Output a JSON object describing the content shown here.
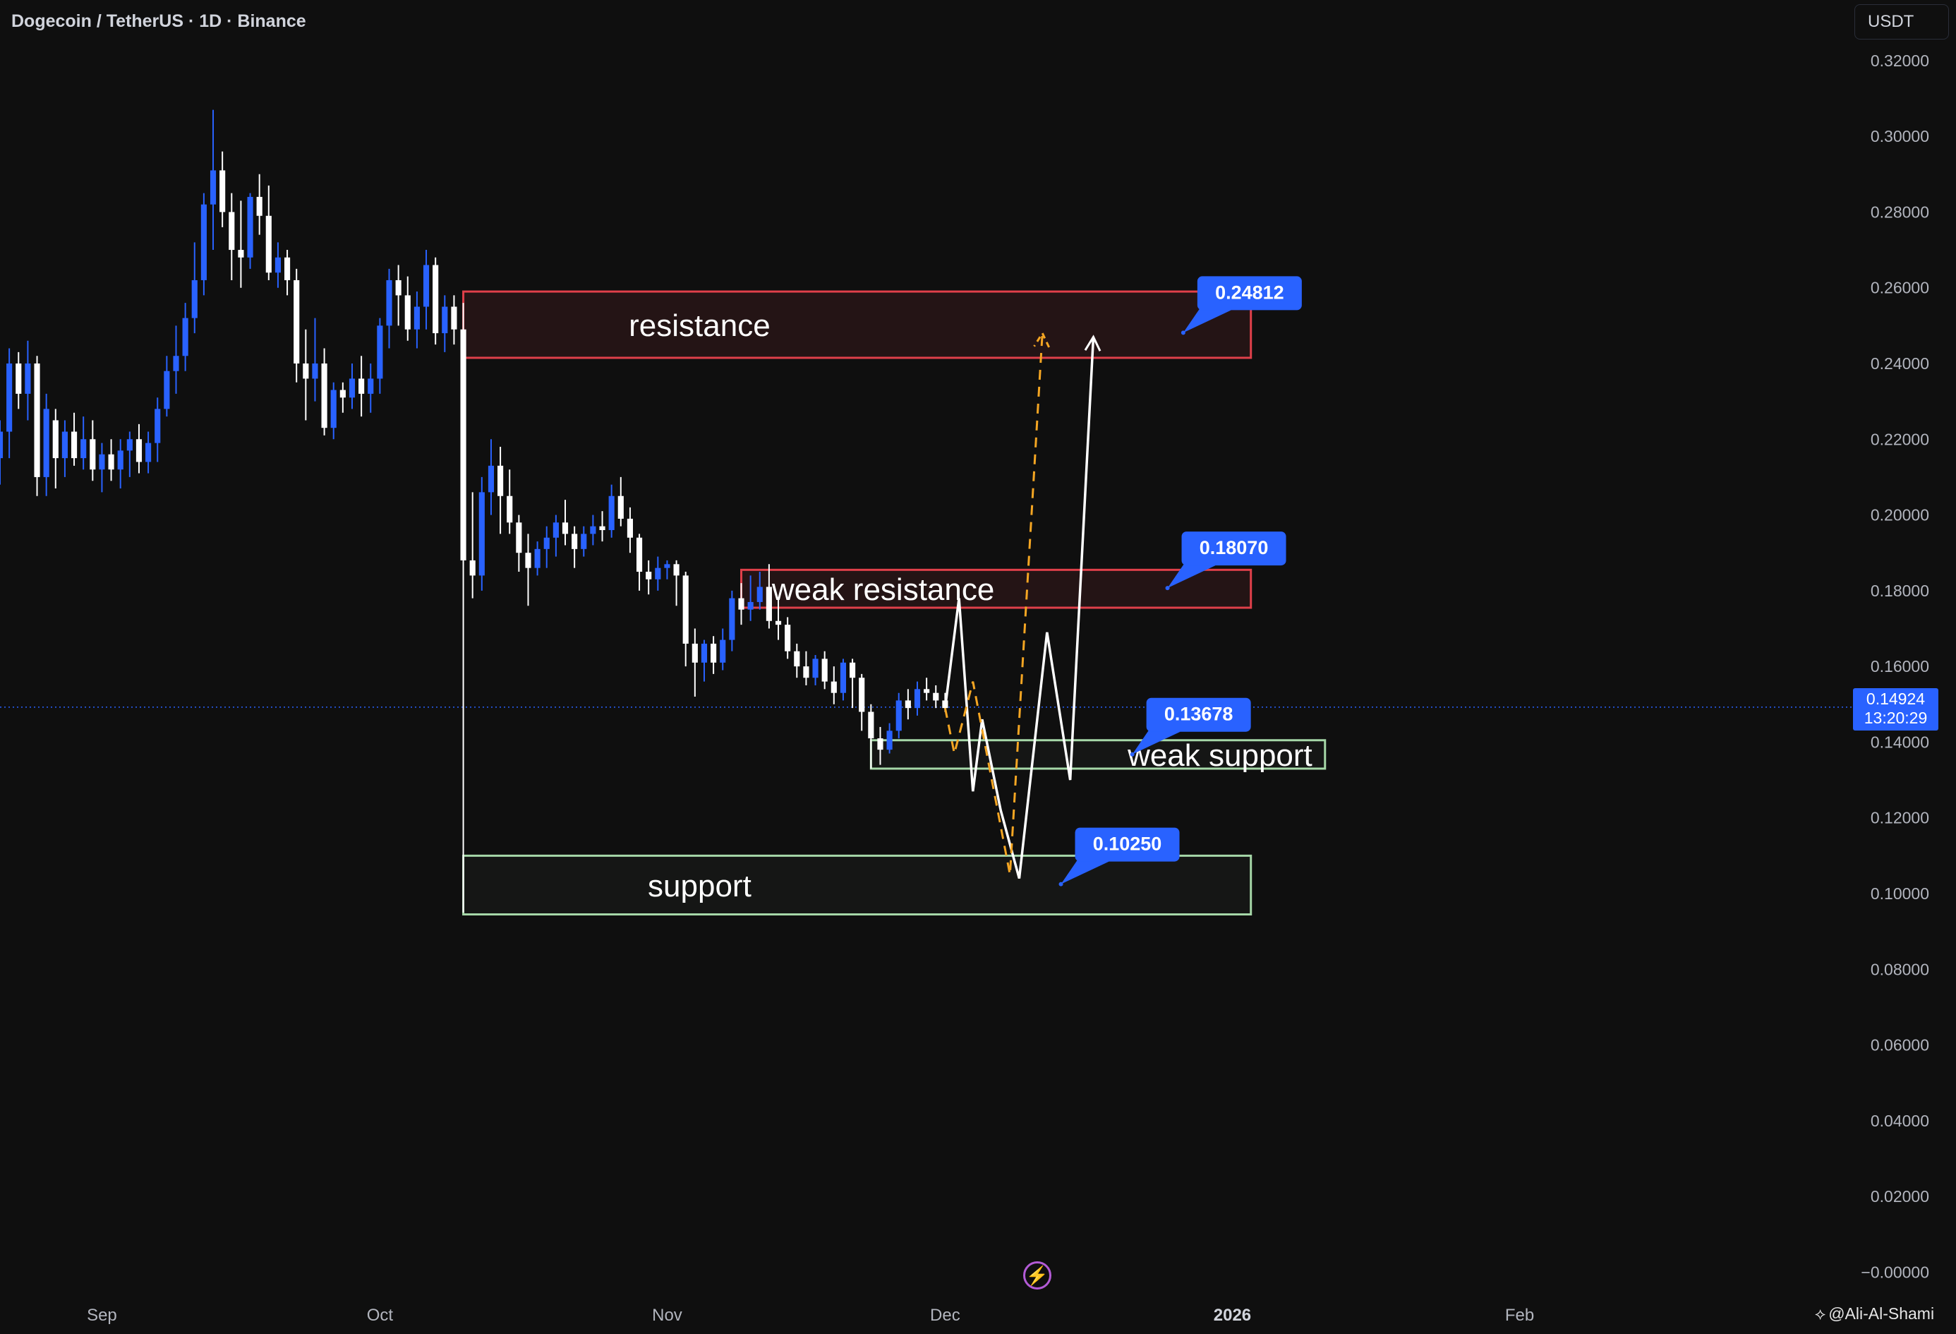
{
  "header": {
    "symbol_title": "Dogecoin / TetherUS · 1D · Binance",
    "currency": "USDT"
  },
  "current_price": {
    "value": "0.14924",
    "countdown": "13:20:29"
  },
  "author": "@Ali-Al-Shami",
  "icons": {
    "flash": "lightning-icon",
    "author": "diamond-logo-icon"
  },
  "colors": {
    "background": "#0f0f0f",
    "up_candle": "#2962ff",
    "down_candle": "#ffffff",
    "resistance": "#e0404a",
    "support": "#a6d8a8",
    "label_bg": "#2962ff",
    "projection_main": "#ffffff",
    "projection_alt": "#f5a623"
  },
  "chart_data": {
    "type": "candlestick",
    "y_axis": {
      "ticks": [
        "0.32000",
        "0.30000",
        "0.28000",
        "0.26000",
        "0.24000",
        "0.22000",
        "0.20000",
        "0.18000",
        "0.16000",
        "0.14000",
        "0.12000",
        "0.10000",
        "0.08000",
        "0.06000",
        "0.04000",
        "0.02000",
        "−0.00000"
      ],
      "tick_values": [
        0.32,
        0.3,
        0.28,
        0.26,
        0.24,
        0.22,
        0.2,
        0.18,
        0.16,
        0.14,
        0.12,
        0.1,
        0.08,
        0.06,
        0.04,
        0.02,
        0.0
      ],
      "range": [
        -0.007,
        0.336
      ]
    },
    "x_axis": {
      "labels": [
        {
          "label": "Sep",
          "day": 0
        },
        {
          "label": "Oct",
          "day": 30
        },
        {
          "label": "Nov",
          "day": 61
        },
        {
          "label": "Dec",
          "day": 91
        },
        {
          "label": "2026",
          "day": 122
        },
        {
          "label": "Feb",
          "day": 153
        }
      ],
      "range_days": [
        -11,
        187
      ]
    },
    "candles": [
      {
        "d": -11,
        "o": 0.215,
        "h": 0.225,
        "l": 0.208,
        "c": 0.222
      },
      {
        "d": -10,
        "o": 0.222,
        "h": 0.244,
        "l": 0.215,
        "c": 0.24
      },
      {
        "d": -9,
        "o": 0.24,
        "h": 0.243,
        "l": 0.228,
        "c": 0.232
      },
      {
        "d": -8,
        "o": 0.232,
        "h": 0.246,
        "l": 0.225,
        "c": 0.24
      },
      {
        "d": -7,
        "o": 0.24,
        "h": 0.242,
        "l": 0.205,
        "c": 0.21
      },
      {
        "d": -6,
        "o": 0.21,
        "h": 0.232,
        "l": 0.205,
        "c": 0.228
      },
      {
        "d": -5,
        "o": 0.225,
        "h": 0.228,
        "l": 0.207,
        "c": 0.215
      },
      {
        "d": -4,
        "o": 0.215,
        "h": 0.225,
        "l": 0.21,
        "c": 0.222
      },
      {
        "d": -3,
        "o": 0.222,
        "h": 0.227,
        "l": 0.213,
        "c": 0.215
      },
      {
        "d": -2,
        "o": 0.215,
        "h": 0.226,
        "l": 0.212,
        "c": 0.22
      },
      {
        "d": -1,
        "o": 0.22,
        "h": 0.225,
        "l": 0.209,
        "c": 0.212
      },
      {
        "d": 0,
        "o": 0.212,
        "h": 0.219,
        "l": 0.206,
        "c": 0.216
      },
      {
        "d": 1,
        "o": 0.216,
        "h": 0.22,
        "l": 0.209,
        "c": 0.212
      },
      {
        "d": 2,
        "o": 0.212,
        "h": 0.22,
        "l": 0.207,
        "c": 0.217
      },
      {
        "d": 3,
        "o": 0.217,
        "h": 0.222,
        "l": 0.21,
        "c": 0.22
      },
      {
        "d": 4,
        "o": 0.22,
        "h": 0.224,
        "l": 0.211,
        "c": 0.214
      },
      {
        "d": 5,
        "o": 0.214,
        "h": 0.222,
        "l": 0.211,
        "c": 0.219
      },
      {
        "d": 6,
        "o": 0.219,
        "h": 0.231,
        "l": 0.214,
        "c": 0.228
      },
      {
        "d": 7,
        "o": 0.228,
        "h": 0.242,
        "l": 0.226,
        "c": 0.238
      },
      {
        "d": 8,
        "o": 0.238,
        "h": 0.25,
        "l": 0.232,
        "c": 0.242
      },
      {
        "d": 9,
        "o": 0.242,
        "h": 0.256,
        "l": 0.238,
        "c": 0.252
      },
      {
        "d": 10,
        "o": 0.252,
        "h": 0.272,
        "l": 0.248,
        "c": 0.262
      },
      {
        "d": 11,
        "o": 0.262,
        "h": 0.285,
        "l": 0.258,
        "c": 0.282
      },
      {
        "d": 12,
        "o": 0.282,
        "h": 0.307,
        "l": 0.27,
        "c": 0.291
      },
      {
        "d": 13,
        "o": 0.291,
        "h": 0.296,
        "l": 0.276,
        "c": 0.28
      },
      {
        "d": 14,
        "o": 0.28,
        "h": 0.285,
        "l": 0.262,
        "c": 0.27
      },
      {
        "d": 15,
        "o": 0.27,
        "h": 0.283,
        "l": 0.26,
        "c": 0.268
      },
      {
        "d": 16,
        "o": 0.268,
        "h": 0.285,
        "l": 0.265,
        "c": 0.284
      },
      {
        "d": 17,
        "o": 0.284,
        "h": 0.29,
        "l": 0.274,
        "c": 0.279
      },
      {
        "d": 18,
        "o": 0.279,
        "h": 0.287,
        "l": 0.262,
        "c": 0.264
      },
      {
        "d": 19,
        "o": 0.264,
        "h": 0.272,
        "l": 0.26,
        "c": 0.268
      },
      {
        "d": 20,
        "o": 0.268,
        "h": 0.27,
        "l": 0.258,
        "c": 0.262
      },
      {
        "d": 21,
        "o": 0.262,
        "h": 0.265,
        "l": 0.235,
        "c": 0.24
      },
      {
        "d": 22,
        "o": 0.24,
        "h": 0.249,
        "l": 0.225,
        "c": 0.236
      },
      {
        "d": 23,
        "o": 0.236,
        "h": 0.252,
        "l": 0.23,
        "c": 0.24
      },
      {
        "d": 24,
        "o": 0.24,
        "h": 0.244,
        "l": 0.221,
        "c": 0.223
      },
      {
        "d": 25,
        "o": 0.223,
        "h": 0.235,
        "l": 0.22,
        "c": 0.233
      },
      {
        "d": 26,
        "o": 0.233,
        "h": 0.235,
        "l": 0.227,
        "c": 0.231
      },
      {
        "d": 27,
        "o": 0.231,
        "h": 0.24,
        "l": 0.228,
        "c": 0.236
      },
      {
        "d": 28,
        "o": 0.236,
        "h": 0.242,
        "l": 0.226,
        "c": 0.232
      },
      {
        "d": 29,
        "o": 0.232,
        "h": 0.24,
        "l": 0.227,
        "c": 0.236
      },
      {
        "d": 30,
        "o": 0.236,
        "h": 0.252,
        "l": 0.232,
        "c": 0.25
      },
      {
        "d": 31,
        "o": 0.25,
        "h": 0.265,
        "l": 0.244,
        "c": 0.262
      },
      {
        "d": 32,
        "o": 0.262,
        "h": 0.266,
        "l": 0.25,
        "c": 0.258
      },
      {
        "d": 33,
        "o": 0.258,
        "h": 0.263,
        "l": 0.246,
        "c": 0.249
      },
      {
        "d": 34,
        "o": 0.249,
        "h": 0.259,
        "l": 0.244,
        "c": 0.255
      },
      {
        "d": 35,
        "o": 0.255,
        "h": 0.27,
        "l": 0.249,
        "c": 0.266
      },
      {
        "d": 36,
        "o": 0.266,
        "h": 0.268,
        "l": 0.245,
        "c": 0.248
      },
      {
        "d": 37,
        "o": 0.248,
        "h": 0.258,
        "l": 0.243,
        "c": 0.255
      },
      {
        "d": 38,
        "o": 0.255,
        "h": 0.258,
        "l": 0.245,
        "c": 0.249
      },
      {
        "d": 39,
        "o": 0.249,
        "h": 0.256,
        "l": 0.095,
        "c": 0.188
      },
      {
        "d": 40,
        "o": 0.188,
        "h": 0.206,
        "l": 0.178,
        "c": 0.184
      },
      {
        "d": 41,
        "o": 0.184,
        "h": 0.21,
        "l": 0.18,
        "c": 0.206
      },
      {
        "d": 42,
        "o": 0.206,
        "h": 0.22,
        "l": 0.2,
        "c": 0.213
      },
      {
        "d": 43,
        "o": 0.213,
        "h": 0.218,
        "l": 0.195,
        "c": 0.205
      },
      {
        "d": 44,
        "o": 0.205,
        "h": 0.212,
        "l": 0.195,
        "c": 0.198
      },
      {
        "d": 45,
        "o": 0.198,
        "h": 0.2,
        "l": 0.185,
        "c": 0.19
      },
      {
        "d": 46,
        "o": 0.19,
        "h": 0.195,
        "l": 0.176,
        "c": 0.186
      },
      {
        "d": 47,
        "o": 0.186,
        "h": 0.193,
        "l": 0.184,
        "c": 0.191
      },
      {
        "d": 48,
        "o": 0.191,
        "h": 0.197,
        "l": 0.186,
        "c": 0.194
      },
      {
        "d": 49,
        "o": 0.194,
        "h": 0.2,
        "l": 0.189,
        "c": 0.198
      },
      {
        "d": 50,
        "o": 0.198,
        "h": 0.204,
        "l": 0.192,
        "c": 0.195
      },
      {
        "d": 51,
        "o": 0.195,
        "h": 0.197,
        "l": 0.186,
        "c": 0.191
      },
      {
        "d": 52,
        "o": 0.191,
        "h": 0.197,
        "l": 0.189,
        "c": 0.195
      },
      {
        "d": 53,
        "o": 0.195,
        "h": 0.2,
        "l": 0.192,
        "c": 0.197
      },
      {
        "d": 54,
        "o": 0.197,
        "h": 0.201,
        "l": 0.193,
        "c": 0.196
      },
      {
        "d": 55,
        "o": 0.196,
        "h": 0.208,
        "l": 0.194,
        "c": 0.205
      },
      {
        "d": 56,
        "o": 0.205,
        "h": 0.21,
        "l": 0.197,
        "c": 0.199
      },
      {
        "d": 57,
        "o": 0.199,
        "h": 0.202,
        "l": 0.19,
        "c": 0.194
      },
      {
        "d": 58,
        "o": 0.194,
        "h": 0.195,
        "l": 0.18,
        "c": 0.185
      },
      {
        "d": 59,
        "o": 0.185,
        "h": 0.188,
        "l": 0.179,
        "c": 0.183
      },
      {
        "d": 60,
        "o": 0.183,
        "h": 0.189,
        "l": 0.18,
        "c": 0.186
      },
      {
        "d": 61,
        "o": 0.186,
        "h": 0.188,
        "l": 0.183,
        "c": 0.187
      },
      {
        "d": 62,
        "o": 0.187,
        "h": 0.188,
        "l": 0.176,
        "c": 0.184
      },
      {
        "d": 63,
        "o": 0.184,
        "h": 0.185,
        "l": 0.16,
        "c": 0.166
      },
      {
        "d": 64,
        "o": 0.166,
        "h": 0.17,
        "l": 0.152,
        "c": 0.161
      },
      {
        "d": 65,
        "o": 0.161,
        "h": 0.167,
        "l": 0.156,
        "c": 0.166
      },
      {
        "d": 66,
        "o": 0.166,
        "h": 0.168,
        "l": 0.158,
        "c": 0.161
      },
      {
        "d": 67,
        "o": 0.161,
        "h": 0.17,
        "l": 0.159,
        "c": 0.167
      },
      {
        "d": 68,
        "o": 0.167,
        "h": 0.18,
        "l": 0.164,
        "c": 0.178
      },
      {
        "d": 69,
        "o": 0.178,
        "h": 0.182,
        "l": 0.171,
        "c": 0.175
      },
      {
        "d": 70,
        "o": 0.175,
        "h": 0.184,
        "l": 0.172,
        "c": 0.177
      },
      {
        "d": 71,
        "o": 0.177,
        "h": 0.185,
        "l": 0.175,
        "c": 0.181
      },
      {
        "d": 72,
        "o": 0.181,
        "h": 0.187,
        "l": 0.17,
        "c": 0.172
      },
      {
        "d": 73,
        "o": 0.172,
        "h": 0.178,
        "l": 0.167,
        "c": 0.171
      },
      {
        "d": 74,
        "o": 0.171,
        "h": 0.173,
        "l": 0.162,
        "c": 0.164
      },
      {
        "d": 75,
        "o": 0.164,
        "h": 0.166,
        "l": 0.157,
        "c": 0.16
      },
      {
        "d": 76,
        "o": 0.16,
        "h": 0.164,
        "l": 0.155,
        "c": 0.157
      },
      {
        "d": 77,
        "o": 0.157,
        "h": 0.163,
        "l": 0.155,
        "c": 0.162
      },
      {
        "d": 78,
        "o": 0.162,
        "h": 0.164,
        "l": 0.154,
        "c": 0.156
      },
      {
        "d": 79,
        "o": 0.156,
        "h": 0.16,
        "l": 0.15,
        "c": 0.153
      },
      {
        "d": 80,
        "o": 0.153,
        "h": 0.162,
        "l": 0.151,
        "c": 0.161
      },
      {
        "d": 81,
        "o": 0.161,
        "h": 0.162,
        "l": 0.149,
        "c": 0.157
      },
      {
        "d": 82,
        "o": 0.157,
        "h": 0.158,
        "l": 0.143,
        "c": 0.148
      },
      {
        "d": 83,
        "o": 0.148,
        "h": 0.15,
        "l": 0.133,
        "c": 0.141
      },
      {
        "d": 84,
        "o": 0.141,
        "h": 0.144,
        "l": 0.134,
        "c": 0.138
      },
      {
        "d": 85,
        "o": 0.138,
        "h": 0.145,
        "l": 0.137,
        "c": 0.143
      },
      {
        "d": 86,
        "o": 0.143,
        "h": 0.153,
        "l": 0.141,
        "c": 0.151
      },
      {
        "d": 87,
        "o": 0.151,
        "h": 0.154,
        "l": 0.146,
        "c": 0.149
      },
      {
        "d": 88,
        "o": 0.149,
        "h": 0.156,
        "l": 0.147,
        "c": 0.154
      },
      {
        "d": 89,
        "o": 0.154,
        "h": 0.157,
        "l": 0.151,
        "c": 0.153
      },
      {
        "d": 90,
        "o": 0.153,
        "h": 0.155,
        "l": 0.149,
        "c": 0.151
      },
      {
        "d": 91,
        "o": 0.151,
        "h": 0.153,
        "l": 0.148,
        "c": 0.149
      }
    ],
    "zones": [
      {
        "label": "resistance",
        "kind": "resistance",
        "top": 0.259,
        "bottom": 0.2415,
        "d_start": 39,
        "d_end": 124
      },
      {
        "label": "weak resistance",
        "kind": "resistance",
        "top": 0.1855,
        "bottom": 0.1755,
        "d_start": 69,
        "d_end": 124
      },
      {
        "label": "weak support",
        "kind": "support",
        "top": 0.1405,
        "bottom": 0.133,
        "d_start": 83,
        "d_end": 132
      },
      {
        "label": "support",
        "kind": "support",
        "top": 0.11,
        "bottom": 0.0945,
        "d_start": 39,
        "d_end": 124
      }
    ],
    "price_labels": [
      {
        "text": "0.24812",
        "price": 0.24812,
        "anchor_d": 116.7
      },
      {
        "text": "0.18070",
        "price": 0.1807,
        "anchor_d": 115.0
      },
      {
        "text": "0.13678",
        "price": 0.13678,
        "anchor_d": 111.2
      },
      {
        "text": "0.10250",
        "price": 0.1025,
        "anchor_d": 103.5
      }
    ],
    "projections": [
      {
        "name": "white",
        "style": "solid",
        "points": [
          [
            91,
            0.149
          ],
          [
            92.5,
            0.178
          ],
          [
            94,
            0.127
          ],
          [
            95,
            0.146
          ],
          [
            97,
            0.122
          ],
          [
            99,
            0.104
          ],
          [
            102,
            0.169
          ],
          [
            104.5,
            0.13
          ],
          [
            107,
            0.247
          ]
        ]
      },
      {
        "name": "orange",
        "style": "dashed",
        "points": [
          [
            91,
            0.149
          ],
          [
            92,
            0.137
          ],
          [
            94,
            0.156
          ],
          [
            98,
            0.105
          ],
          [
            101.5,
            0.248
          ]
        ]
      }
    ],
    "current_price": 0.14924,
    "grid": false,
    "legend": "none"
  }
}
